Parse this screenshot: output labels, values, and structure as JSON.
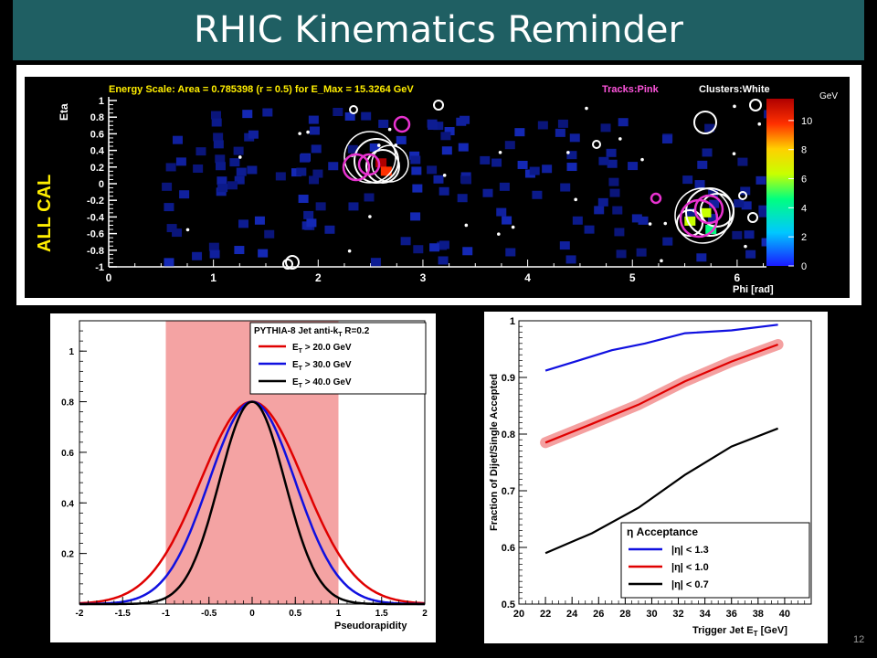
{
  "slide": {
    "title": "RHIC Kinematics Reminder",
    "page_number": "12"
  },
  "chart_data": [
    {
      "type": "heatmap",
      "header_text": "Energy Scale: Area = 0.785398 (r = 0.5) for E_Max = 15.3264 GeV",
      "tracks_label": "Tracks:Pink",
      "clusters_label": "Clusters:White",
      "side_label": "ALL CAL",
      "xlabel": "Phi [rad]",
      "ylabel": "Eta",
      "x_ticks": [
        "0",
        "1",
        "2",
        "3",
        "4",
        "5",
        "6"
      ],
      "y_ticks": [
        "1",
        "0.8",
        "0.6",
        "0.4",
        "0.2",
        "0",
        "-0.2",
        "-0.4",
        "-0.6",
        "-0.8",
        "-1"
      ],
      "xlim": [
        0,
        6.28
      ],
      "ylim": [
        -1,
        1
      ],
      "colorbar_label": "GeV",
      "colorbar_ticks": [
        "10",
        "8",
        "6",
        "4",
        "2",
        "0"
      ],
      "zlim": [
        0,
        11.5
      ],
      "hot_cells": [
        {
          "phi": 2.6,
          "eta": 0.25,
          "energy": 10.5
        },
        {
          "phi": 2.65,
          "eta": 0.15,
          "energy": 9
        },
        {
          "phi": 5.55,
          "eta": -0.45,
          "energy": 5.5
        },
        {
          "phi": 5.7,
          "eta": -0.35,
          "energy": 6
        },
        {
          "phi": 5.75,
          "eta": -0.55,
          "energy": 4
        }
      ]
    },
    {
      "type": "line",
      "legend_title": "PYTHIA-8 Jet anti-k",
      "legend_title_sub": "T",
      "legend_title_suffix": " R=0.2",
      "xlabel": "Pseudorapidity",
      "xlim": [
        -2,
        2
      ],
      "ylim": [
        0,
        1.12
      ],
      "x_ticks": [
        "-2",
        "-1.5",
        "-1",
        "-0.5",
        "0",
        "0.5",
        "1",
        "1.5",
        "2"
      ],
      "y_ticks": [
        "0.2",
        "0.4",
        "0.6",
        "0.8",
        "1"
      ],
      "shaded_band": [
        -1,
        1
      ],
      "series": [
        {
          "name_prefix": "E",
          "name_sub": "T",
          "name_suffix": " > 20.0 GeV",
          "color": "#e00000",
          "peak": 0.8,
          "sigma": 0.6
        },
        {
          "name_prefix": "E",
          "name_sub": "T",
          "name_suffix": " > 30.0 GeV",
          "color": "#1010e0",
          "peak": 0.8,
          "sigma": 0.5
        },
        {
          "name_prefix": "E",
          "name_sub": "T",
          "name_suffix": " > 40.0 GeV",
          "color": "#000000",
          "peak": 0.8,
          "sigma": 0.38
        }
      ]
    },
    {
      "type": "line",
      "ylabel": "Fraction of Dijet/Single Accepted",
      "xlabel_prefix": "Trigger Jet E",
      "xlabel_sub": "T",
      "xlabel_suffix": " [GeV]",
      "xlim": [
        20,
        42
      ],
      "ylim": [
        0.5,
        1.0
      ],
      "x_ticks": [
        "20",
        "22",
        "24",
        "26",
        "28",
        "30",
        "32",
        "34",
        "36",
        "38",
        "40"
      ],
      "y_ticks": [
        "0.5",
        "0.6",
        "0.7",
        "0.8",
        "0.9",
        "1"
      ],
      "legend_title": "η Acceptance",
      "series": [
        {
          "name": "|η| < 1.3",
          "color": "#1010e0",
          "x": [
            22,
            24.5,
            27,
            29.5,
            32.5,
            36,
            39.5
          ],
          "y": [
            0.912,
            0.93,
            0.948,
            0.96,
            0.978,
            0.983,
            0.993
          ]
        },
        {
          "name": "|η| < 1.0",
          "color": "#e00000",
          "band": true,
          "x": [
            22,
            25.5,
            29,
            32.5,
            36,
            39.5
          ],
          "y": [
            0.785,
            0.818,
            0.852,
            0.893,
            0.928,
            0.958
          ]
        },
        {
          "name": "|η| < 0.7",
          "color": "#000000",
          "x": [
            22,
            25.5,
            29,
            32.5,
            36,
            39.5
          ],
          "y": [
            0.59,
            0.625,
            0.67,
            0.728,
            0.778,
            0.81
          ]
        }
      ]
    }
  ]
}
